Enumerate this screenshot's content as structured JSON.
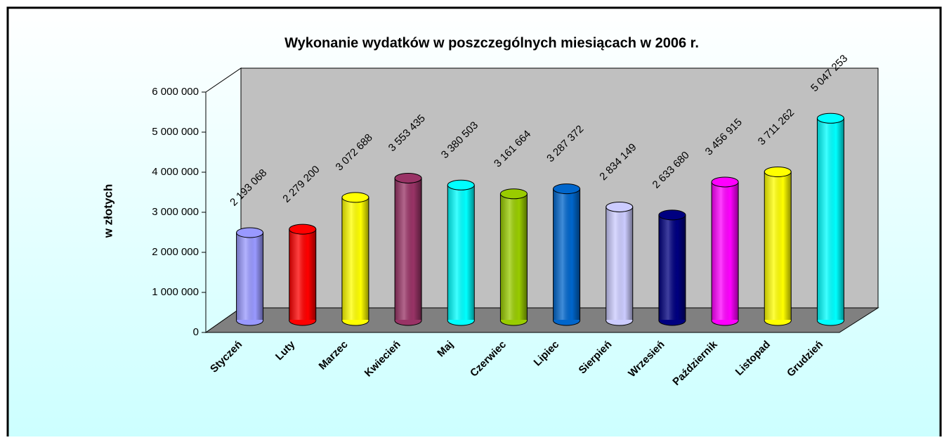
{
  "chart_data": {
    "type": "bar",
    "title": "Wykonanie wydatków w poszczególnych miesiącach w 2006 r.",
    "y_label": "w złotych",
    "categories": [
      "Styczeń",
      "Luty",
      "Marzec",
      "Kwiecień",
      "Maj",
      "Czerwiec",
      "Lipiec",
      "Sierpień",
      "Wrzesień",
      "Październik",
      "Listopad",
      "Grudzień"
    ],
    "values": [
      2193068,
      2279200,
      3072688,
      3553435,
      3380503,
      3161664,
      3287372,
      2834149,
      2633680,
      3456915,
      3711262,
      5047253
    ],
    "value_labels": [
      "2 193 068",
      "2 279 200",
      "3 072 688",
      "3 553 435",
      "3 380 503",
      "3 161 664",
      "3 287 372",
      "2 834 149",
      "2 633 680",
      "3 456 915",
      "3 711 262",
      "5 047 253"
    ],
    "colors": [
      "#9999ff",
      "#ff0000",
      "#ffff00",
      "#993366",
      "#00ffff",
      "#99cc00",
      "#0066cc",
      "#ccccff",
      "#000080",
      "#ff00ff",
      "#ffff00",
      "#00ffff"
    ],
    "ylim": [
      0,
      6000000
    ],
    "yticks": [
      0,
      {
        "value": 1000000,
        "label": "1 000 000"
      },
      {
        "value": 2000000,
        "label": "2 000 000"
      },
      {
        "value": 3000000,
        "label": "3 000 000"
      },
      {
        "value": 4000000,
        "label": "4 000 000"
      },
      {
        "value": 5000000,
        "label": "5 000 000"
      },
      {
        "value": 6000000,
        "label": "6 000 000"
      }
    ]
  }
}
